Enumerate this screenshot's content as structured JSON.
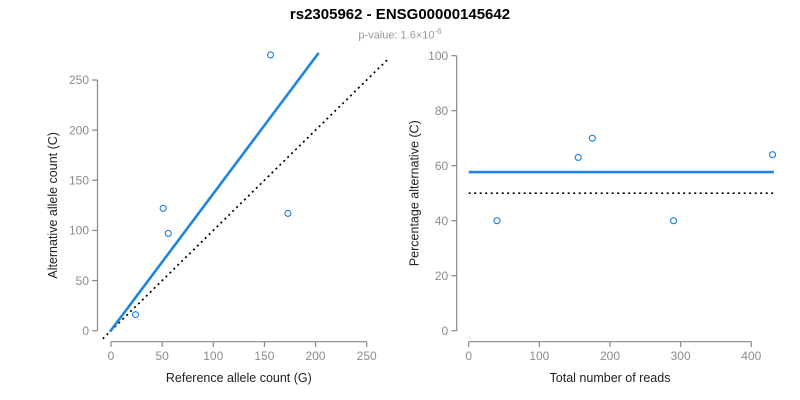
{
  "header": {
    "title": "rs2305962 - ENSG00000145642",
    "subtitle_text": "p-value: 1.6×10",
    "subtitle_exponent": "-6"
  },
  "colors": {
    "accent_blue": "#1f85de",
    "axis_gray": "#888888",
    "tick_label_gray": "#8c8c8c",
    "axis_title_color": "#222222",
    "dotted_black": "#000000",
    "title_black": "#000000",
    "subtitle_gray": "#999999"
  },
  "chart_data": [
    {
      "type": "scatter",
      "name": "allele-count-scatter",
      "xlabel": "Reference allele count (G)",
      "ylabel": "Alternative allele count (C)",
      "xticks": [
        0,
        50,
        100,
        150,
        200,
        250
      ],
      "yticks": [
        0,
        50,
        100,
        150,
        200,
        250
      ],
      "xlim": [
        -10,
        260
      ],
      "ylim": [
        -11,
        287
      ],
      "grid": false,
      "marker": "open-circle",
      "points": [
        [
          24,
          16
        ],
        [
          51,
          122
        ],
        [
          56,
          97
        ],
        [
          156,
          275
        ],
        [
          173,
          117
        ]
      ],
      "lines": [
        {
          "name": "identity-line",
          "style": "dotted",
          "color": "black",
          "x": [
            -8,
            272
          ],
          "y": [
            -8,
            272
          ]
        },
        {
          "name": "fit-line",
          "style": "solid",
          "color": "accent",
          "x": [
            -1,
            203
          ],
          "y": [
            -1,
            277
          ]
        }
      ]
    },
    {
      "type": "scatter",
      "name": "percentage-alternative-scatter",
      "xlabel": "Total number of reads",
      "ylabel": "Percentage alternative (C)",
      "xticks": [
        0,
        100,
        200,
        300,
        400
      ],
      "yticks": [
        0,
        20,
        40,
        60,
        80,
        100
      ],
      "xlim": [
        -17,
        449
      ],
      "ylim": [
        -4,
        104
      ],
      "grid": false,
      "marker": "open-circle",
      "points": [
        [
          40,
          40
        ],
        [
          155,
          63
        ],
        [
          175,
          70
        ],
        [
          290,
          40
        ],
        [
          430,
          64
        ]
      ],
      "lines": [
        {
          "name": "null-line",
          "style": "dotted",
          "color": "black",
          "x": [
            0,
            432
          ],
          "y": [
            50,
            50
          ]
        },
        {
          "name": "mean-line",
          "style": "solid",
          "color": "accent",
          "x": [
            0,
            432
          ],
          "y": [
            57.7,
            57.7
          ]
        }
      ]
    }
  ]
}
